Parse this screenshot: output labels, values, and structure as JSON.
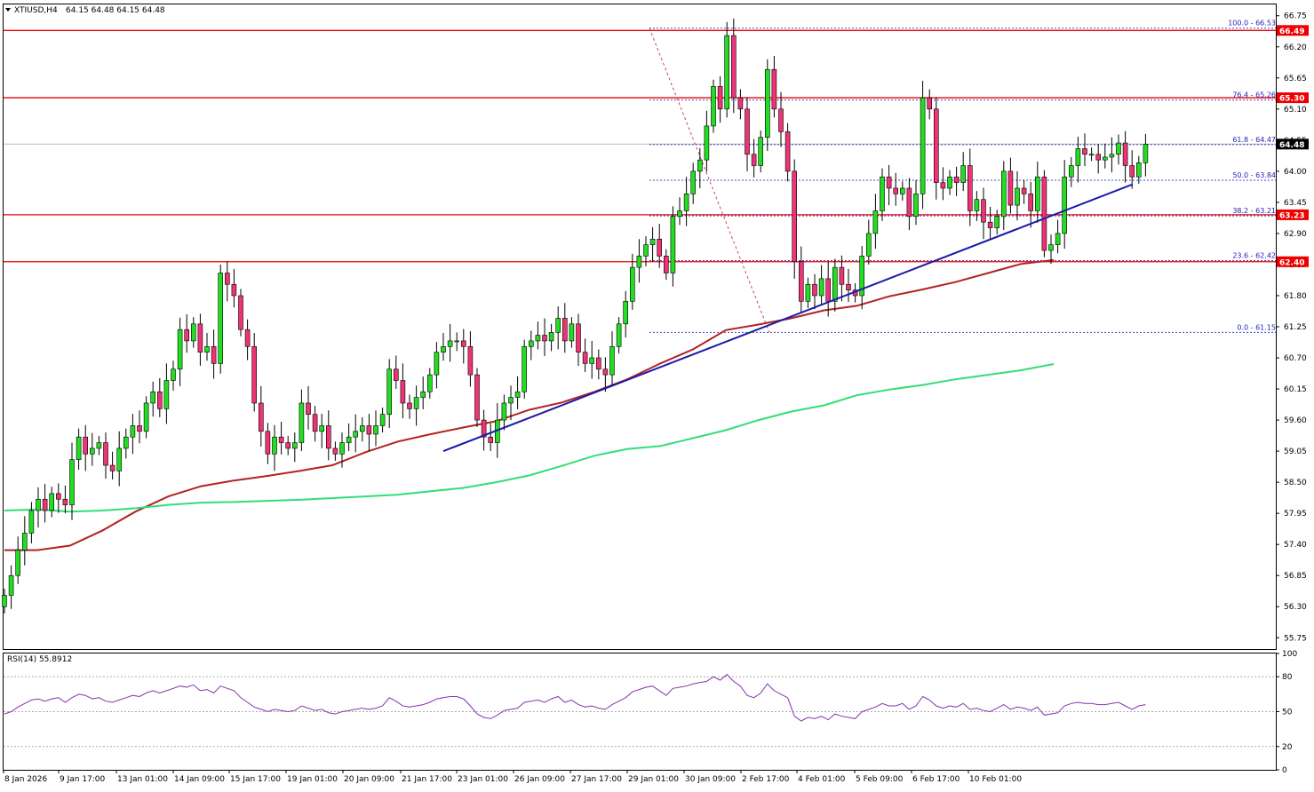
{
  "header": {
    "symbol_title": "XTIUSD,H4",
    "ohlc": "64.15 64.48 64.15 64.48",
    "rsi_title": "RSI(14) 55.8912"
  },
  "colors": {
    "bull": "#22dd22",
    "bear": "#ee3377",
    "sma_red": "#b22222",
    "sma_green": "#33dd77",
    "resistance": "#ee0000",
    "trendline": "#1a1aaa",
    "fib": "#4444cc",
    "rsi_line": "#8833aa"
  },
  "chart_data": [
    {
      "type": "candlestick",
      "title": "XTIUSD,H4",
      "ylim": [
        55.55,
        66.95
      ],
      "y_ticks": [
        "66.75",
        "66.20",
        "65.65",
        "65.10",
        "64.55",
        "64.00",
        "63.45",
        "62.90",
        "62.35",
        "61.80",
        "61.25",
        "60.70",
        "60.15",
        "59.60",
        "59.05",
        "58.50",
        "57.95",
        "57.40",
        "56.85",
        "56.30",
        "55.75"
      ],
      "x_ticks": [
        "8 Jan 2026",
        "9 Jan 17:00",
        "13 Jan 01:00",
        "14 Jan 09:00",
        "15 Jan 17:00",
        "19 Jan 01:00",
        "20 Jan 09:00",
        "21 Jan 17:00",
        "23 Jan 01:00",
        "26 Jan 09:00",
        "27 Jan 17:00",
        "29 Jan 01:00",
        "30 Jan 09:00",
        "2 Feb 17:00",
        "4 Feb 01:00",
        "5 Feb 09:00",
        "6 Feb 17:00",
        "10 Feb 01:00"
      ],
      "key_levels": [
        {
          "value": 66.49,
          "label": "66.49"
        },
        {
          "value": 65.3,
          "label": "65.30"
        },
        {
          "value": 63.23,
          "label": "63.23"
        },
        {
          "value": 62.4,
          "label": "62.40"
        }
      ],
      "current_price": {
        "value": 64.48,
        "label": "64.48"
      },
      "fibonacci": [
        {
          "value": 66.53,
          "label": "100.0 - 66.53"
        },
        {
          "value": 65.26,
          "label": "76.4 - 65.26"
        },
        {
          "value": 64.47,
          "label": "61.8 - 64.47"
        },
        {
          "value": 63.84,
          "label": "50.0 - 63.84"
        },
        {
          "value": 63.21,
          "label": "38.2 - 63.21"
        },
        {
          "value": 62.42,
          "label": "23.6 - 62.42"
        },
        {
          "value": 61.15,
          "label": "0.0 - 61.15"
        }
      ],
      "candles_close": [
        56.5,
        56.85,
        57.3,
        57.6,
        58.0,
        58.2,
        58.0,
        58.3,
        58.2,
        58.1,
        58.9,
        59.3,
        59.0,
        59.1,
        59.2,
        58.8,
        58.7,
        59.1,
        59.3,
        59.5,
        59.4,
        59.9,
        60.1,
        59.8,
        60.3,
        60.5,
        61.2,
        61.0,
        61.3,
        60.8,
        60.9,
        60.6,
        62.2,
        62.0,
        61.8,
        61.2,
        60.9,
        59.9,
        59.4,
        59.0,
        59.3,
        59.2,
        59.1,
        59.2,
        59.9,
        59.7,
        59.4,
        59.5,
        59.1,
        59.0,
        59.2,
        59.3,
        59.4,
        59.5,
        59.35,
        59.5,
        59.7,
        60.5,
        60.3,
        59.9,
        59.8,
        60.0,
        60.1,
        60.4,
        60.8,
        60.9,
        61.0,
        61.0,
        60.9,
        60.4,
        59.6,
        59.3,
        59.2,
        59.6,
        59.9,
        60.0,
        60.1,
        60.9,
        61.0,
        61.1,
        61.0,
        61.15,
        61.4,
        61.0,
        61.3,
        60.8,
        60.6,
        60.7,
        60.5,
        60.4,
        60.9,
        61.3,
        61.7,
        62.3,
        62.5,
        62.7,
        62.8,
        62.5,
        62.2,
        63.2,
        63.3,
        63.6,
        64.0,
        64.2,
        64.8,
        65.5,
        65.1,
        66.4,
        65.3,
        65.1,
        64.3,
        64.1,
        64.6,
        65.8,
        65.1,
        64.7,
        64.0,
        62.4,
        61.7,
        62.0,
        61.8,
        62.1,
        61.7,
        62.3,
        62.0,
        61.9,
        61.8,
        62.5,
        62.9,
        63.3,
        63.9,
        63.7,
        63.6,
        63.7,
        63.2,
        63.6,
        65.3,
        65.1,
        63.8,
        63.7,
        63.9,
        63.8,
        64.1,
        63.3,
        63.5,
        63.1,
        63.0,
        63.2,
        64.0,
        63.4,
        63.7,
        63.6,
        63.3,
        63.9,
        62.6,
        62.7,
        62.9,
        63.9,
        64.1,
        64.4,
        64.3,
        64.3,
        64.2,
        64.25,
        64.3,
        64.5,
        64.1,
        63.9,
        64.15,
        64.48
      ],
      "sma_red_points": [
        [
          0,
          57.3
        ],
        [
          30,
          57.3
        ],
        [
          60,
          57.38
        ],
        [
          90,
          57.65
        ],
        [
          120,
          57.98
        ],
        [
          150,
          58.25
        ],
        [
          180,
          58.43
        ],
        [
          210,
          58.53
        ],
        [
          240,
          58.61
        ],
        [
          270,
          58.7
        ],
        [
          300,
          58.8
        ],
        [
          330,
          59.03
        ],
        [
          360,
          59.22
        ],
        [
          390,
          59.35
        ],
        [
          420,
          59.47
        ],
        [
          450,
          59.58
        ],
        [
          480,
          59.78
        ],
        [
          510,
          59.91
        ],
        [
          540,
          60.1
        ],
        [
          570,
          60.32
        ],
        [
          600,
          60.6
        ],
        [
          630,
          60.85
        ],
        [
          660,
          61.19
        ],
        [
          690,
          61.29
        ],
        [
          720,
          61.4
        ],
        [
          750,
          61.54
        ],
        [
          780,
          61.62
        ],
        [
          810,
          61.79
        ],
        [
          840,
          61.91
        ],
        [
          870,
          62.04
        ],
        [
          900,
          62.2
        ],
        [
          930,
          62.36
        ],
        [
          960,
          62.43
        ]
      ],
      "sma_green_points": [
        [
          0,
          58.0
        ],
        [
          30,
          58.02
        ],
        [
          60,
          57.98
        ],
        [
          90,
          58.0
        ],
        [
          120,
          58.04
        ],
        [
          150,
          58.1
        ],
        [
          180,
          58.14
        ],
        [
          210,
          58.15
        ],
        [
          240,
          58.17
        ],
        [
          270,
          58.19
        ],
        [
          300,
          58.22
        ],
        [
          330,
          58.25
        ],
        [
          360,
          58.28
        ],
        [
          390,
          58.34
        ],
        [
          420,
          58.4
        ],
        [
          450,
          58.5
        ],
        [
          480,
          58.62
        ],
        [
          510,
          58.79
        ],
        [
          540,
          58.97
        ],
        [
          570,
          59.09
        ],
        [
          600,
          59.14
        ],
        [
          630,
          59.28
        ],
        [
          660,
          59.42
        ],
        [
          690,
          59.6
        ],
        [
          720,
          59.75
        ],
        [
          750,
          59.86
        ],
        [
          780,
          60.04
        ],
        [
          810,
          60.14
        ],
        [
          840,
          60.22
        ],
        [
          870,
          60.32
        ],
        [
          900,
          60.4
        ],
        [
          930,
          60.48
        ],
        [
          960,
          60.59
        ]
      ],
      "trendline": [
        [
          0,
          59.05
        ],
        [
          31,
          63.77
        ]
      ],
      "legend": "none",
      "grid": false
    },
    {
      "type": "line",
      "title": "RSI(14) 55.8912",
      "ylim": [
        0,
        100
      ],
      "y_ticks": [
        "100",
        "80",
        "50",
        "20",
        "0"
      ],
      "levels": [
        80,
        50,
        20
      ],
      "values": [
        48,
        50,
        54,
        57,
        60,
        61,
        59,
        61,
        62,
        58,
        62,
        65,
        64,
        61,
        62,
        59,
        58,
        60,
        62,
        64,
        63,
        66,
        68,
        66,
        68,
        70,
        72,
        71,
        73,
        68,
        69,
        66,
        72,
        70,
        68,
        62,
        58,
        54,
        52,
        50,
        52,
        51,
        50,
        51,
        55,
        53,
        51,
        52,
        49,
        48,
        50,
        51,
        52,
        53,
        52,
        53,
        55,
        62,
        59,
        55,
        54,
        55,
        56,
        58,
        61,
        62,
        63,
        63,
        61,
        55,
        48,
        45,
        44,
        47,
        51,
        52,
        53,
        58,
        59,
        60,
        58,
        61,
        63,
        58,
        60,
        56,
        54,
        55,
        53,
        52,
        56,
        59,
        62,
        67,
        69,
        71,
        72,
        68,
        64,
        70,
        71,
        72,
        74,
        75,
        76,
        80,
        77,
        82,
        76,
        72,
        64,
        62,
        66,
        74,
        68,
        65,
        62,
        46,
        42,
        45,
        44,
        46,
        43,
        48,
        46,
        45,
        44,
        50,
        52,
        54,
        57,
        55,
        55,
        57,
        52,
        55,
        63,
        60,
        55,
        53,
        55,
        54,
        57,
        52,
        53,
        51,
        50,
        53,
        56,
        52,
        54,
        53,
        51,
        54,
        47,
        48,
        49,
        55,
        57,
        58,
        57,
        57,
        56,
        56,
        57,
        58,
        55,
        52,
        55,
        56
      ]
    }
  ]
}
